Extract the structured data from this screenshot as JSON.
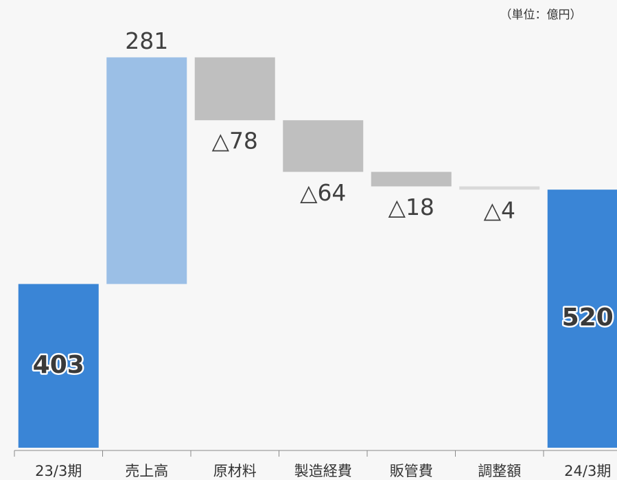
{
  "chart_data": {
    "type": "waterfall",
    "unit_label": "（単位：億円）",
    "categories": [
      "23/3期",
      "売上高",
      "原材料",
      "製造経費",
      "販管費",
      "調整額",
      "24/3期"
    ],
    "values": [
      403,
      281,
      -78,
      -64,
      -18,
      -4,
      520
    ],
    "value_labels": [
      "403",
      "281",
      "△78",
      "△64",
      "△18",
      "△4",
      "520"
    ],
    "measure": [
      "absolute",
      "relative",
      "relative",
      "relative",
      "relative",
      "relative",
      "absolute"
    ],
    "colors": [
      "#3a85d6",
      "#9bbfe6",
      "#bfbfbf",
      "#bfbfbf",
      "#bfbfbf",
      "#d9d9d9",
      "#3a85d6"
    ],
    "ylim": [
      200,
      750
    ]
  }
}
